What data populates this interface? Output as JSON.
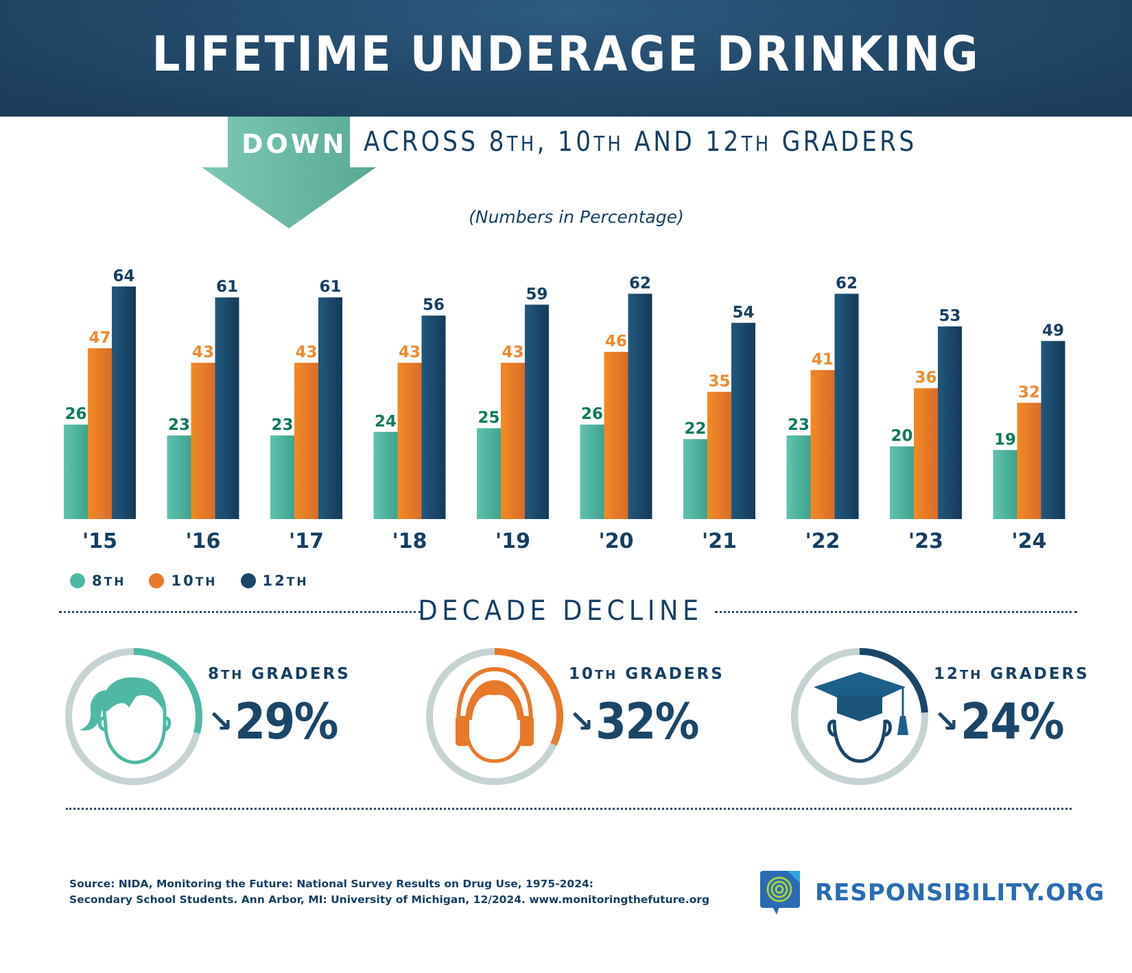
{
  "header": {
    "title": "LIFETIME UNDERAGE DRINKING"
  },
  "subheader": {
    "down_label": "DOWN",
    "parts": [
      "ACROSS 8",
      "TH",
      ", 10",
      "TH",
      " AND 12",
      "TH",
      " GRADERS"
    ],
    "note": "(Numbers in Percentage)"
  },
  "colors": {
    "grade8": "#4fb8a4",
    "grade10": "#e8792a",
    "grade12": "#1b4668",
    "ring_bg": "#c5d3d3",
    "label8": "#0f7a5a",
    "label10": "#f08a2e",
    "label12": "#163f63"
  },
  "chart_data": {
    "type": "bar",
    "title": "LIFETIME UNDERAGE DRINKING",
    "subtitle": "DOWN ACROSS 8TH, 10TH AND 12TH GRADERS",
    "ylabel": "(Numbers in Percentage)",
    "xlabel": "",
    "categories": [
      "'15",
      "'16",
      "'17",
      "'18",
      "'19",
      "'20",
      "'21",
      "'22",
      "'23",
      "'24"
    ],
    "series": [
      {
        "name": "8TH",
        "values": [
          26,
          23,
          23,
          24,
          25,
          26,
          22,
          23,
          20,
          19
        ]
      },
      {
        "name": "10TH",
        "values": [
          47,
          43,
          43,
          43,
          43,
          46,
          35,
          41,
          36,
          32
        ]
      },
      {
        "name": "12TH",
        "values": [
          64,
          61,
          61,
          56,
          59,
          62,
          54,
          62,
          53,
          49
        ]
      }
    ],
    "ylim": [
      0,
      70
    ],
    "grid": false,
    "legend": "bottom-left"
  },
  "legend": [
    {
      "num": "8",
      "suffix": "TH"
    },
    {
      "num": "10",
      "suffix": "TH"
    },
    {
      "num": "12",
      "suffix": "TH"
    }
  ],
  "decade": {
    "title": "DECADE DECLINE",
    "stats": [
      {
        "num": "8",
        "suffix": "TH",
        "label": " GRADERS",
        "arrow": "↘",
        "value": "29%",
        "fraction": 0.29,
        "icon": "girl-face-icon"
      },
      {
        "num": "10",
        "suffix": "TH",
        "label": " GRADERS",
        "arrow": "↘",
        "value": "32%",
        "fraction": 0.32,
        "icon": "headphones-face-icon"
      },
      {
        "num": "12",
        "suffix": "TH",
        "label": " GRADERS",
        "arrow": "↘",
        "value": "24%",
        "fraction": 0.24,
        "icon": "graduate-face-icon"
      }
    ]
  },
  "footer": {
    "source_line1": "Source: NIDA, Monitoring the Future: National Survey Results on Drug Use, 1975-2024:",
    "source_line2": "Secondary School Students. Ann Arbor, MI: University of Michigan, 12/2024. www.monitoringthefuture.org",
    "logo_text": "RESPONSIBILITY.ORG"
  }
}
